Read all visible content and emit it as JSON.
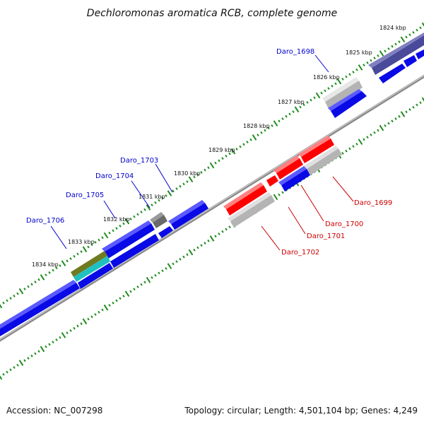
{
  "title": "Dechloromonas aromatica RCB, complete genome",
  "footer": {
    "accession": "Accession: NC_007298",
    "summary": "Topology: circular; Length: 4,501,104 bp; Genes: 4,249"
  },
  "ticks": [
    "1824 kbp",
    "1825 kbp",
    "1826 kbp",
    "1827 kbp",
    "1828 kbp",
    "1829 kbp",
    "1830 kbp",
    "1831 kbp",
    "1832 kbp",
    "1833 kbp",
    "1834 kbp"
  ],
  "forward_labels": [
    "Daro_1698",
    "Daro_1703",
    "Daro_1704",
    "Daro_1705",
    "Daro_1706"
  ],
  "reverse_labels": [
    "Daro_1699",
    "Daro_1700",
    "Daro_1701",
    "Daro_1702"
  ],
  "colors": {
    "forward_gene": "#0a0ae6",
    "reverse_gene": "#ff0000",
    "pseudo_gene": "#b4b4b4",
    "dark_gene": "#4a4a9a",
    "backbone": "#888888",
    "tick_major": "#1e8c1e",
    "tick_minor": "#1e8c1e",
    "forward_label": "#0000cc",
    "reverse_label": "#cc0000"
  }
}
